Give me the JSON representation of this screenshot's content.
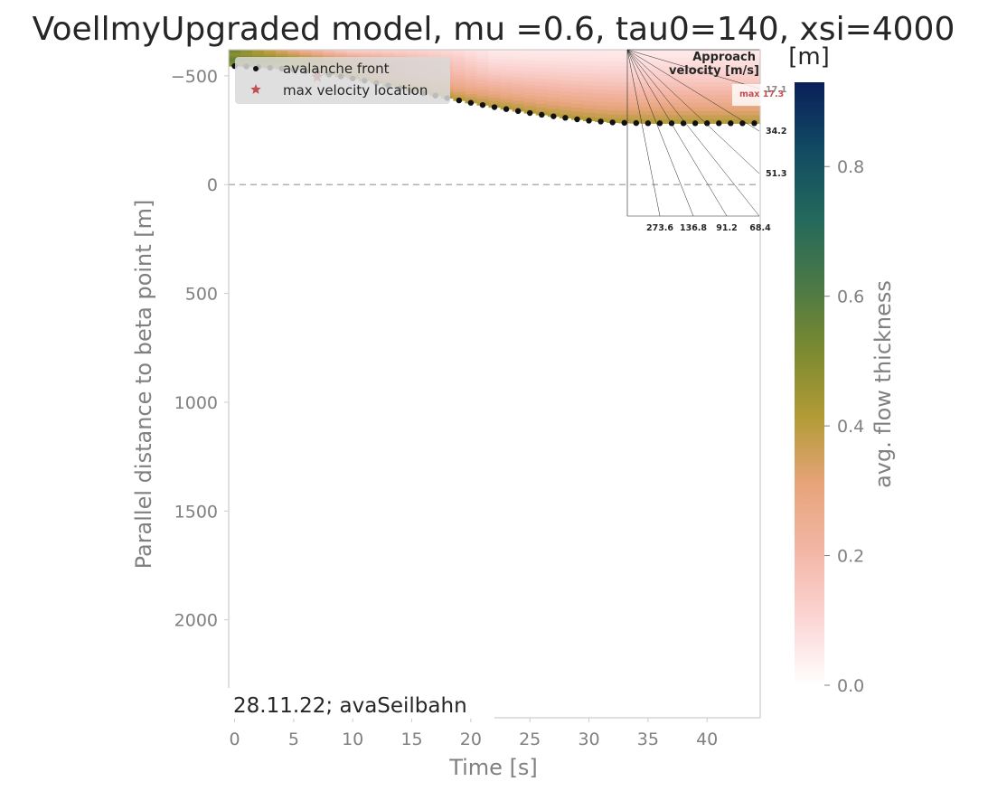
{
  "chart_data": {
    "type": "heatmap",
    "title": "VoellmyUpgraded model, mu =0.6, tau0=140, xsi=4000",
    "xlabel": "Time [s]",
    "ylabel": "Parallel distance to beta point [m]",
    "xlim": [
      -0.5,
      44.5
    ],
    "ylim": [
      2450,
      -620
    ],
    "y_inverted": true,
    "xticks": [
      0,
      5,
      10,
      15,
      20,
      25,
      30,
      35,
      40
    ],
    "yticks": [
      -500,
      0,
      500,
      1000,
      1500,
      2000
    ],
    "colorbar": {
      "label": "avg. flow thickness",
      "unit": "[m]",
      "range": [
        0,
        0.93
      ],
      "ticks": [
        0.0,
        0.2,
        0.4,
        0.6,
        0.8
      ],
      "tick_labels": [
        "0.0",
        "0.2",
        "0.4",
        "0.6",
        "0.8"
      ],
      "colormap": [
        "#ffffff",
        "#fbd5d3",
        "#f3b6a6",
        "#e7a47a",
        "#b29b36",
        "#7a8a30",
        "#4a7847",
        "#22685c",
        "#124a63",
        "#0a1f5a"
      ]
    },
    "reference_line": {
      "y": 0,
      "style": "dashed",
      "color": "#b0b0b0"
    },
    "series": [
      {
        "name": "avalanche front",
        "marker": "dot",
        "color": "#111111",
        "x": [
          0,
          1,
          2,
          3,
          4,
          5,
          6,
          7,
          8,
          9,
          10,
          11,
          12,
          13,
          14,
          15,
          16,
          17,
          18,
          19,
          20,
          21,
          22,
          23,
          24,
          25,
          26,
          27,
          28,
          29,
          30,
          31,
          32,
          33,
          34,
          35,
          36,
          37,
          38,
          39,
          40,
          41,
          42,
          43,
          44
        ],
        "y": [
          -545,
          -543,
          -540,
          -537,
          -533,
          -528,
          -521,
          -514,
          -506,
          -497,
          -488,
          -478,
          -467,
          -455,
          -443,
          -431,
          -420,
          -409,
          -398,
          -387,
          -376,
          -366,
          -356,
          -347,
          -338,
          -329,
          -321,
          -314,
          -307,
          -300,
          -294,
          -290,
          -286,
          -284,
          -283,
          -282,
          -282,
          -282,
          -282,
          -282,
          -282,
          -282,
          -282,
          -282,
          -282
        ]
      },
      {
        "name": "max velocity location",
        "marker": "star",
        "color": "#c44e52",
        "x": [
          7
        ],
        "y": [
          -495
        ]
      }
    ],
    "legend": {
      "placement": "top-left",
      "entries": [
        "avalanche front",
        "max velocity location"
      ]
    },
    "inset": {
      "title": "Approach\nvelocity [m/s]",
      "title_lines": [
        "Approach",
        "velocity [m/s]"
      ],
      "right_labels": [
        "17.1",
        "34.2",
        "51.3"
      ],
      "bottom_labels": [
        "273.6",
        "136.8",
        "91.2",
        "68.4"
      ],
      "max_label": "max 17.3"
    },
    "annotation": "28.11.22; avaSeilbahn"
  }
}
